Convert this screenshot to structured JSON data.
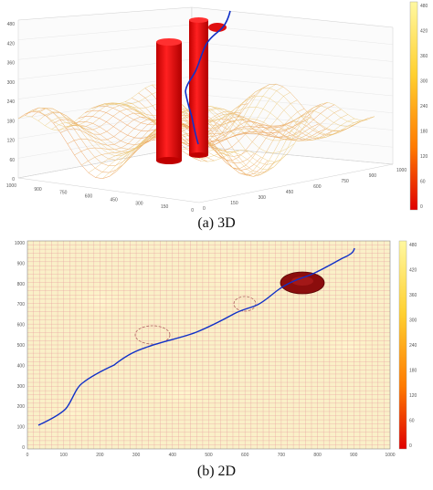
{
  "figure_a": {
    "caption": "(a) 3D",
    "colorbar_ticks": [
      "480",
      "420",
      "360",
      "300",
      "240",
      "180",
      "120",
      "60",
      "0"
    ],
    "z_ticks": [
      "480",
      "420",
      "360",
      "300",
      "240",
      "180",
      "120",
      "60",
      "0"
    ],
    "left_axis_ticks": [
      "1000",
      "900",
      "750",
      "600",
      "450",
      "300",
      "150",
      "0"
    ],
    "right_axis_ticks": [
      "0",
      "150",
      "300",
      "450",
      "600",
      "750",
      "900",
      "1000"
    ],
    "colors": {
      "mesh": "#e8a040",
      "mesh_light": "#f8d888",
      "obstacle": "#e41010",
      "path": "#1030c8"
    }
  },
  "figure_b": {
    "caption": "(b) 2D",
    "y_ticks": [
      "1000",
      "900",
      "800",
      "700",
      "600",
      "500",
      "400",
      "300",
      "200",
      "100",
      "0"
    ],
    "x_ticks": [
      "0",
      "100",
      "200",
      "300",
      "400",
      "500",
      "600",
      "700",
      "800",
      "900",
      "1000"
    ],
    "colorbar_ticks": [
      "480",
      "420",
      "360",
      "300",
      "240",
      "180",
      "120",
      "60",
      "0"
    ],
    "colors": {
      "grid": "#e9a0a0",
      "background": "#faf0c8",
      "threat": "#8b0d0d",
      "path": "#1030c8"
    }
  }
}
